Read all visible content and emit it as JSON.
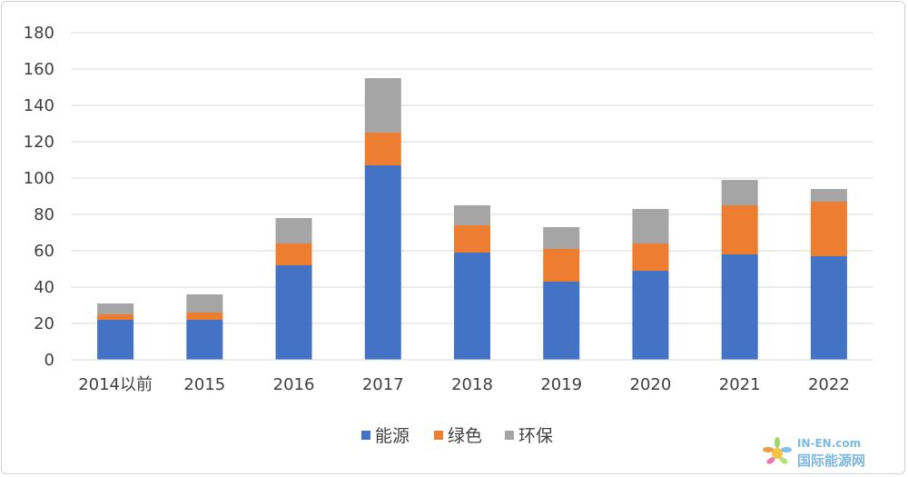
{
  "chart_data": {
    "type": "bar",
    "stacked": true,
    "categories": [
      "2014以前",
      "2015",
      "2016",
      "2017",
      "2018",
      "2019",
      "2020",
      "2021",
      "2022"
    ],
    "series": [
      {
        "name": "能源",
        "color": "#4472c4",
        "values": [
          22,
          22,
          52,
          107,
          59,
          43,
          49,
          58,
          57
        ]
      },
      {
        "name": "绿色",
        "color": "#ed7d31",
        "values": [
          3,
          4,
          12,
          18,
          15,
          18,
          15,
          27,
          30
        ]
      },
      {
        "name": "环保",
        "color": "#a5a5a5",
        "values": [
          6,
          10,
          14,
          30,
          11,
          12,
          19,
          14,
          7
        ]
      }
    ],
    "ylim": [
      0,
      180
    ],
    "yticks": [
      0,
      20,
      40,
      60,
      80,
      100,
      120,
      140,
      160,
      180
    ],
    "grid": true,
    "legend": "bottom"
  },
  "watermark": {
    "top": "IN-EN.com",
    "bottom": "国际能源网",
    "icon": "sun-flower-logo-icon"
  }
}
